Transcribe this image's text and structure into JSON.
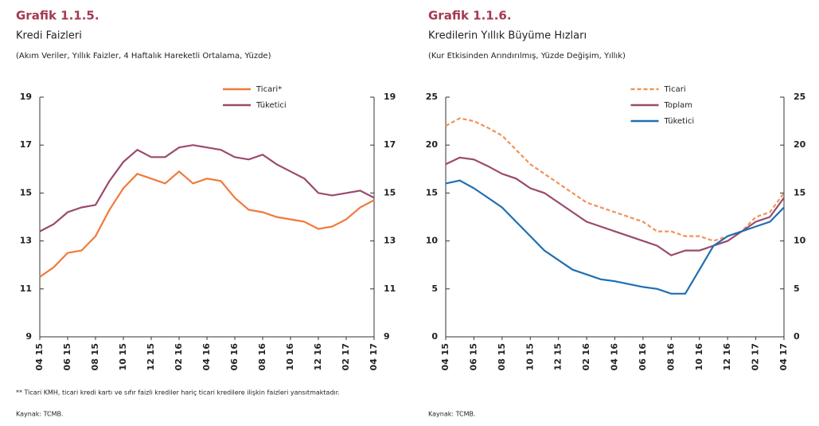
{
  "chart_data": [
    {
      "type": "line",
      "title": "Grafik 1.1.5.",
      "subtitle": "Kredi Faizleri",
      "note": "(Akım Veriler, Yıllık Faizler, 4 Haftalık Hareketli Ortalama, Yüzde)",
      "footnote": "** Ticari KMH, ticari kredi kartı ve sıfır faizli krediler hariç ticari kredilere ilişkin faizleri yansıtmaktadır.",
      "source": "Kaynak: TCMB.",
      "categories": [
        "04 15",
        null,
        "06 15",
        null,
        "08 15",
        null,
        "10 15",
        null,
        "12 15",
        null,
        "02 16",
        null,
        "04 16",
        null,
        "06 16",
        null,
        "08 16",
        null,
        "10 16",
        null,
        "12 16",
        null,
        "02 17",
        null,
        "04 17"
      ],
      "ylim": [
        9,
        19
      ],
      "yticks": [
        9,
        11,
        13,
        15,
        17,
        19
      ],
      "y2lim": [
        9,
        19
      ],
      "y2ticks": [
        9,
        11,
        13,
        15,
        17,
        19
      ],
      "legend": "top",
      "series": [
        {
          "name": "Ticari*",
          "color": "#f07a3a",
          "style": "solid",
          "values": [
            11.5,
            11.9,
            12.5,
            12.6,
            13.2,
            14.3,
            15.2,
            15.8,
            15.6,
            15.4,
            15.9,
            15.4,
            15.6,
            15.5,
            14.8,
            14.3,
            14.2,
            14.0,
            13.9,
            13.8,
            13.5,
            13.6,
            13.9,
            14.4,
            14.7
          ]
        },
        {
          "name": "Tüketici",
          "color": "#9b4a6e",
          "style": "solid",
          "values": [
            13.4,
            13.7,
            14.2,
            14.4,
            14.5,
            15.5,
            16.3,
            16.8,
            16.5,
            16.5,
            16.9,
            17.0,
            16.9,
            16.8,
            16.5,
            16.4,
            16.6,
            16.2,
            15.9,
            15.6,
            15.0,
            14.9,
            15.0,
            15.1,
            14.8
          ]
        }
      ]
    },
    {
      "type": "line",
      "title": "Grafik 1.1.6.",
      "subtitle": "Kredilerin Yıllık Büyüme Hızları",
      "note": "(Kur Etkisinden Arındırılmış, Yüzde Değişim, Yıllık)",
      "source": "Kaynak: TCMB.",
      "categories": [
        "04 15",
        null,
        "06 15",
        null,
        "08 15",
        null,
        "10 15",
        null,
        "12 15",
        null,
        "02 16",
        null,
        "04 16",
        null,
        "06 16",
        null,
        "08 16",
        null,
        "10 16",
        null,
        "12 16",
        null,
        "02 17",
        null,
        "04 17"
      ],
      "ylim": [
        0,
        25
      ],
      "yticks": [
        0,
        5,
        10,
        15,
        20,
        25
      ],
      "y2lim": [
        0,
        25
      ],
      "y2ticks": [
        0,
        5,
        10,
        15,
        20,
        25
      ],
      "legend": "top",
      "series": [
        {
          "name": "Ticari",
          "color": "#f0925a",
          "style": "dashed",
          "values": [
            22.0,
            22.8,
            22.5,
            21.8,
            21.0,
            19.5,
            18.0,
            17.0,
            16.0,
            15.0,
            14.0,
            13.5,
            13.0,
            12.5,
            12.0,
            11.0,
            11.0,
            10.5,
            10.5,
            10.0,
            10.5,
            11.0,
            12.5,
            13.0,
            15.0
          ]
        },
        {
          "name": "Toplam",
          "color": "#9b4a6e",
          "style": "solid",
          "values": [
            18.0,
            18.7,
            18.5,
            17.8,
            17.0,
            16.5,
            15.5,
            15.0,
            14.0,
            13.0,
            12.0,
            11.5,
            11.0,
            10.5,
            10.0,
            9.5,
            8.5,
            9.0,
            9.0,
            9.5,
            10.0,
            11.0,
            12.0,
            12.5,
            14.5
          ]
        },
        {
          "name": "Tüketici",
          "color": "#1f6fb2",
          "style": "solid",
          "values": [
            16.0,
            16.3,
            15.5,
            14.5,
            13.5,
            12.0,
            10.5,
            9.0,
            8.0,
            7.0,
            6.5,
            6.0,
            5.8,
            5.5,
            5.2,
            5.0,
            4.5,
            4.5,
            7.0,
            9.5,
            10.5,
            11.0,
            11.5,
            12.0,
            13.5
          ]
        }
      ]
    }
  ]
}
